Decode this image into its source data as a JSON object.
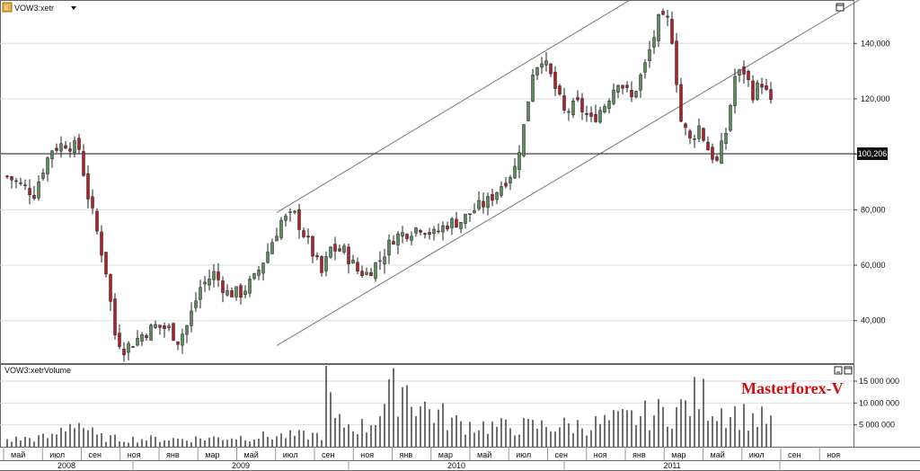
{
  "price_panel": {
    "symbol_label": "VOW3:xetr",
    "current_price_label": "100,206",
    "current_price": 100206,
    "y_ticks": [
      {
        "value": 40000,
        "label": "40,000"
      },
      {
        "value": 60000,
        "label": "60,000"
      },
      {
        "value": 80000,
        "label": "80,000"
      },
      {
        "value": 100000,
        "label": ""
      },
      {
        "value": 120000,
        "label": "120,000"
      },
      {
        "value": 140000,
        "label": "140,000"
      }
    ],
    "ylim": [
      25000,
      155000
    ]
  },
  "volume_panel": {
    "title": "VOW3:xetrVolume",
    "y_ticks": [
      {
        "value": 5000000,
        "label": "5 000 000"
      },
      {
        "value": 10000000,
        "label": "10 000 000"
      },
      {
        "value": 15000000,
        "label": "15 000 000"
      }
    ],
    "ylim": [
      0,
      18500000
    ]
  },
  "watermark": "Masterforex-V",
  "time_axis": {
    "months": [
      "май",
      "июл",
      "сен",
      "ноя",
      "янв",
      "мар",
      "май",
      "июл",
      "сен",
      "ноя",
      "янв",
      "мар",
      "май",
      "июл",
      "сен",
      "ноя",
      "янв",
      "мар",
      "май",
      "июл",
      "сен",
      "ноя"
    ],
    "years": [
      "2008",
      "2009",
      "2010",
      "2011"
    ]
  },
  "colors": {
    "bull": "#5b8c5a",
    "bear": "#b02028",
    "wick": "#222222",
    "grid": "#d9dde4",
    "watermark": "#d01010"
  },
  "chart_data": {
    "type": "candlestick",
    "interval": "weekly",
    "anchors": [
      [
        0,
        92000
      ],
      [
        3,
        89000
      ],
      [
        6,
        86000
      ],
      [
        8,
        95000
      ],
      [
        10,
        102000
      ],
      [
        13,
        104000
      ],
      [
        16,
        102000
      ],
      [
        18,
        85000
      ],
      [
        20,
        72000
      ],
      [
        22,
        58000
      ],
      [
        24,
        35000
      ],
      [
        26,
        30000
      ],
      [
        28,
        32000
      ],
      [
        30,
        35000
      ],
      [
        33,
        38000
      ],
      [
        36,
        37000
      ],
      [
        38,
        33000
      ],
      [
        40,
        38000
      ],
      [
        43,
        52000
      ],
      [
        46,
        57000
      ],
      [
        49,
        50000
      ],
      [
        52,
        50000
      ],
      [
        55,
        55000
      ],
      [
        58,
        65000
      ],
      [
        61,
        76000
      ],
      [
        64,
        78000
      ],
      [
        67,
        68000
      ],
      [
        70,
        57000
      ],
      [
        72,
        66000
      ],
      [
        75,
        65000
      ],
      [
        78,
        58000
      ],
      [
        80,
        57000
      ],
      [
        83,
        62000
      ],
      [
        86,
        70000
      ],
      [
        89,
        72000
      ],
      [
        92,
        74000
      ],
      [
        95,
        71000
      ],
      [
        98,
        75000
      ],
      [
        101,
        76000
      ],
      [
        104,
        80000
      ],
      [
        107,
        83000
      ],
      [
        110,
        89000
      ],
      [
        113,
        95000
      ],
      [
        115,
        110000
      ],
      [
        117,
        130000
      ],
      [
        119,
        135000
      ],
      [
        121,
        128000
      ],
      [
        124,
        115000
      ],
      [
        127,
        118000
      ],
      [
        130,
        112000
      ],
      [
        133,
        118000
      ],
      [
        136,
        127000
      ],
      [
        139,
        120000
      ],
      [
        142,
        132000
      ],
      [
        145,
        148000
      ],
      [
        147,
        148000
      ],
      [
        148,
        142000
      ],
      [
        150,
        112000
      ],
      [
        152,
        105000
      ],
      [
        154,
        110000
      ],
      [
        156,
        102000
      ],
      [
        158,
        97000
      ],
      [
        160,
        108000
      ],
      [
        162,
        128000
      ],
      [
        164,
        130000
      ],
      [
        166,
        122000
      ],
      [
        168,
        126000
      ],
      [
        170,
        118000
      ]
    ],
    "volume_anchors": [
      [
        0,
        1800000
      ],
      [
        10,
        2500000
      ],
      [
        15,
        7000000
      ],
      [
        20,
        2500000
      ],
      [
        25,
        2000000
      ],
      [
        40,
        2000000
      ],
      [
        55,
        2600000
      ],
      [
        70,
        3000000
      ],
      [
        71,
        17500000
      ],
      [
        73,
        6000000
      ],
      [
        80,
        5000000
      ],
      [
        88,
        16500000
      ],
      [
        92,
        10500000
      ],
      [
        100,
        6000000
      ],
      [
        110,
        5000000
      ],
      [
        130,
        5500000
      ],
      [
        150,
        9500000
      ],
      [
        154,
        13000000
      ],
      [
        158,
        10000000
      ],
      [
        165,
        7500000
      ],
      [
        170,
        6500000
      ]
    ],
    "x_range": [
      0,
      170
    ],
    "channel_lines": [
      {
        "x1": 60,
        "y1": 79000,
        "x2": 139,
        "y2": 156000
      },
      {
        "x1": 60,
        "y1": 31000,
        "x2": 190,
        "y2": 156000
      }
    ],
    "horizontal_line": 100206
  }
}
